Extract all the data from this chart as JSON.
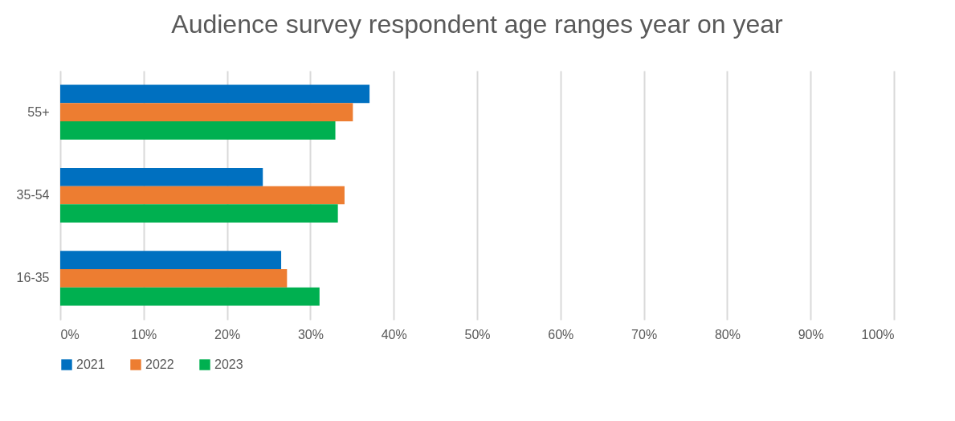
{
  "chart_data": {
    "type": "bar",
    "orientation": "horizontal",
    "title": "Audience survey respondent age ranges year on year",
    "categories": [
      "55+",
      "35-54",
      "16-35"
    ],
    "series": [
      {
        "name": "2021",
        "color": "#0070c0",
        "values": [
          37.1,
          24.3,
          26.5
        ]
      },
      {
        "name": "2022",
        "color": "#ed7d31",
        "values": [
          35.1,
          34.1,
          27.2
        ]
      },
      {
        "name": "2023",
        "color": "#00b050",
        "values": [
          33.0,
          33.3,
          31.1
        ]
      }
    ],
    "xlim": [
      0,
      100
    ],
    "xticks": [
      {
        "value": 0,
        "label": "0%"
      },
      {
        "value": 10,
        "label": "10%"
      },
      {
        "value": 20,
        "label": "20%"
      },
      {
        "value": 30,
        "label": "30%"
      },
      {
        "value": 40,
        "label": "40%"
      },
      {
        "value": 50,
        "label": "50%"
      },
      {
        "value": 60,
        "label": "60%"
      },
      {
        "value": 70,
        "label": "70%"
      },
      {
        "value": 80,
        "label": "80%"
      },
      {
        "value": 90,
        "label": "90%"
      },
      {
        "value": 100,
        "label": "100%"
      }
    ],
    "grid": "x",
    "legend": "bottom"
  }
}
